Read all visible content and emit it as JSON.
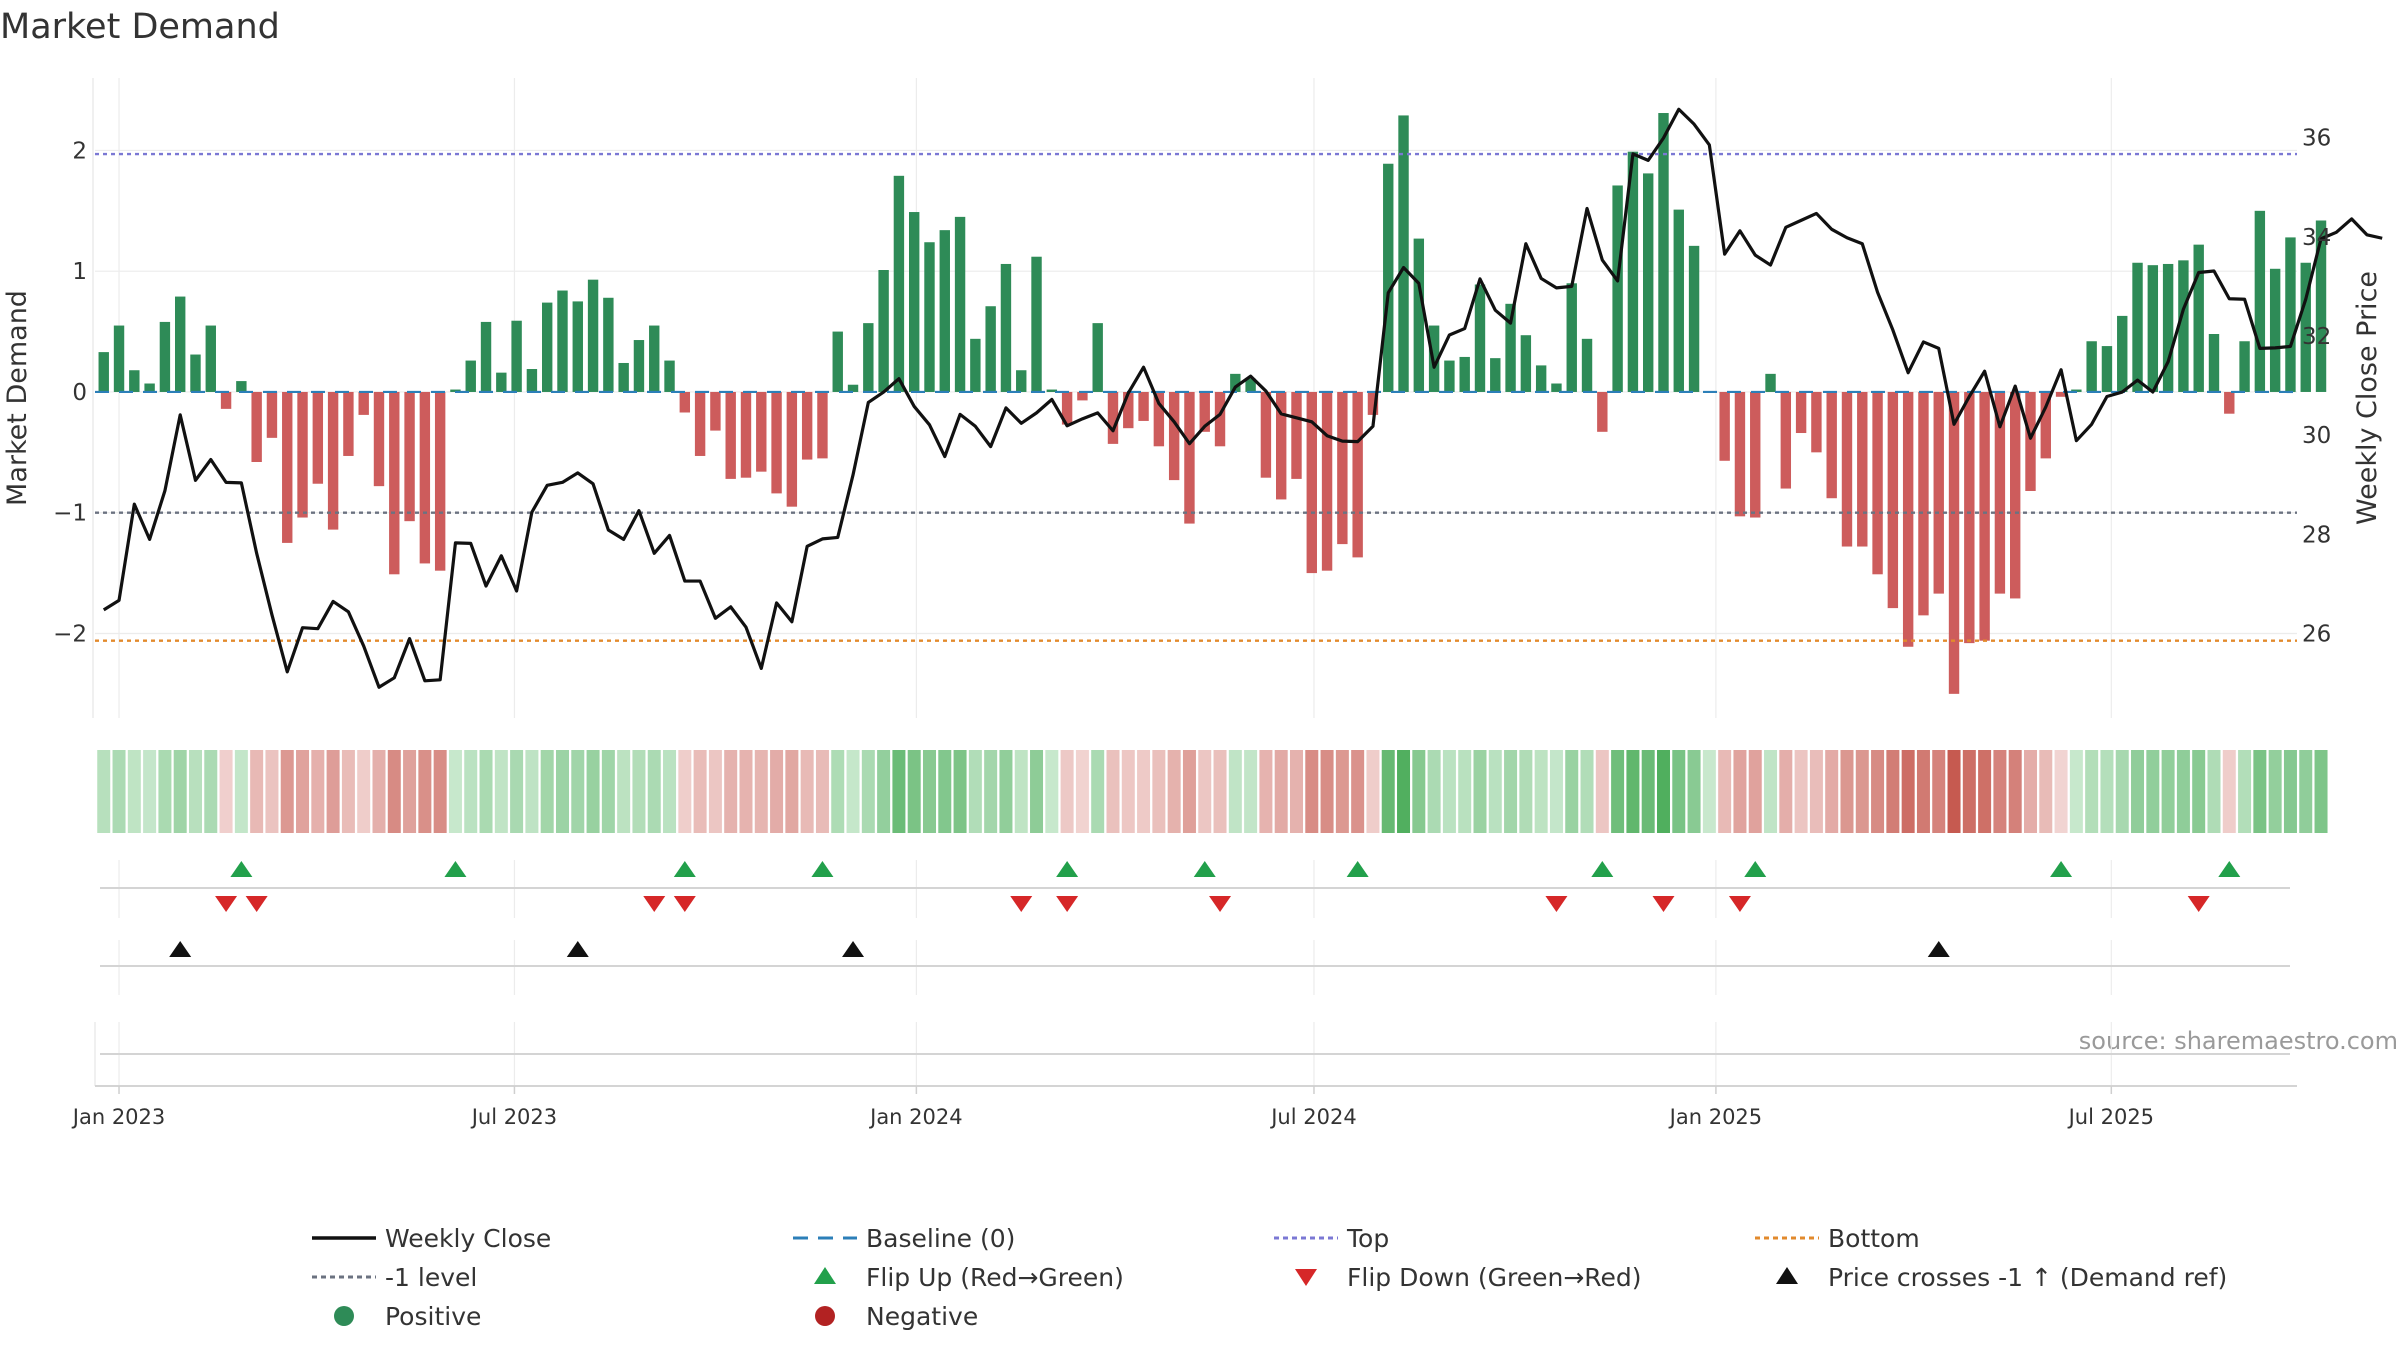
{
  "chart_data": {
    "type": "bar",
    "title": "Market Demand",
    "ylabel": "Market Demand",
    "y2label": "Weekly Close Price",
    "ylim": [
      -2.7,
      2.6
    ],
    "y2lim": [
      24.3,
      37.2
    ],
    "yticks": [
      -2,
      -1,
      0,
      1,
      2
    ],
    "ytick_labels": [
      "−2",
      "−1",
      "0",
      "1",
      "2"
    ],
    "y2ticks": [
      26,
      28,
      30,
      32,
      34,
      36
    ],
    "y2tick_labels": [
      "26",
      "28",
      "30",
      "32",
      "34",
      "36"
    ],
    "x_range": [
      "2022-12-21",
      "2025-09-24"
    ],
    "xticks": [
      {
        "date": "2023-01-01",
        "label": "Jan 2023"
      },
      {
        "date": "2023-07-01",
        "label": "Jul 2023"
      },
      {
        "date": "2024-01-01",
        "label": "Jan 2024"
      },
      {
        "date": "2024-07-01",
        "label": "Jul 2024"
      },
      {
        "date": "2025-01-01",
        "label": "Jan 2025"
      },
      {
        "date": "2025-07-01",
        "label": "Jul 2025"
      }
    ],
    "start_week": "2022-12-25",
    "week_days": 7,
    "demand": [
      0.33,
      0.55,
      0.18,
      0.07,
      0.58,
      0.79,
      0.31,
      0.55,
      -0.14,
      0.09,
      -0.58,
      -0.38,
      -1.25,
      -1.04,
      -0.76,
      -1.14,
      -0.53,
      -0.19,
      -0.78,
      -1.51,
      -1.07,
      -1.42,
      -1.48,
      0.02,
      0.26,
      0.58,
      0.16,
      0.59,
      0.19,
      0.74,
      0.84,
      0.75,
      0.93,
      0.78,
      0.24,
      0.43,
      0.55,
      0.26,
      -0.17,
      -0.53,
      -0.32,
      -0.72,
      -0.71,
      -0.66,
      -0.84,
      -0.95,
      -0.56,
      -0.55,
      0.5,
      0.06,
      0.57,
      1.01,
      1.79,
      1.49,
      1.24,
      1.34,
      1.45,
      0.44,
      0.71,
      1.06,
      0.18,
      1.12,
      0.02,
      -0.27,
      -0.07,
      0.57,
      -0.43,
      -0.3,
      -0.24,
      -0.45,
      -0.73,
      -1.09,
      -0.33,
      -0.45,
      0.15,
      0.11,
      -0.71,
      -0.89,
      -0.72,
      -1.5,
      -1.48,
      -1.26,
      -1.37,
      -0.19,
      1.89,
      2.29,
      1.27,
      0.55,
      0.26,
      0.29,
      0.89,
      0.28,
      0.73,
      0.47,
      0.22,
      0.07,
      0.9,
      0.44,
      -0.33,
      1.71,
      1.99,
      1.81,
      2.31,
      1.51,
      1.21,
      0.0,
      -0.57,
      -1.03,
      -1.04,
      0.15,
      -0.8,
      -0.34,
      -0.5,
      -0.88,
      -1.28,
      -1.28,
      -1.51,
      -1.79,
      -2.11,
      -1.85,
      -1.67,
      -2.5,
      -2.08,
      -2.06,
      -1.67,
      -1.71,
      -0.82,
      -0.55,
      -0.04,
      0.02,
      0.42,
      0.38,
      0.63,
      1.07,
      1.05,
      1.06,
      1.09,
      1.22,
      0.48,
      -0.18,
      0.42,
      1.5,
      1.02,
      1.28,
      1.07,
      1.42
    ],
    "close": [
      26.48,
      26.67,
      28.61,
      27.9,
      28.88,
      30.41,
      29.09,
      29.51,
      29.05,
      29.04,
      27.62,
      26.38,
      25.23,
      26.12,
      26.1,
      26.65,
      26.44,
      25.75,
      24.92,
      25.11,
      25.9,
      25.05,
      25.07,
      27.83,
      27.82,
      26.96,
      27.57,
      26.86,
      28.45,
      28.99,
      29.05,
      29.24,
      29.02,
      28.09,
      27.9,
      28.48,
      27.62,
      27.98,
      27.06,
      27.06,
      26.31,
      26.54,
      26.13,
      25.3,
      26.62,
      26.24,
      27.76,
      27.91,
      27.94,
      29.2,
      30.66,
      30.87,
      31.14,
      30.58,
      30.21,
      29.57,
      30.42,
      30.18,
      29.77,
      30.55,
      30.24,
      30.45,
      30.72,
      30.19,
      30.33,
      30.45,
      30.09,
      30.85,
      31.37,
      30.64,
      30.27,
      29.83,
      30.18,
      30.42,
      30.97,
      31.19,
      30.89,
      30.43,
      30.35,
      30.27,
      29.99,
      29.88,
      29.87,
      30.18,
      32.87,
      33.38,
      33.06,
      31.37,
      32.02,
      32.15,
      33.15,
      32.52,
      32.26,
      33.86,
      33.16,
      32.97,
      33.0,
      34.57,
      33.53,
      33.11,
      35.67,
      35.54,
      35.99,
      36.57,
      36.27,
      35.85,
      33.65,
      34.12,
      33.63,
      33.43,
      34.19,
      34.33,
      34.47,
      34.15,
      33.98,
      33.86,
      32.88,
      32.12,
      31.26,
      31.88,
      31.75,
      30.22,
      30.78,
      31.29,
      30.17,
      30.99,
      29.94,
      30.57,
      31.32,
      29.89,
      30.22,
      30.78,
      30.87,
      31.11,
      30.87,
      31.48,
      32.54,
      33.28,
      33.31,
      32.75,
      32.74,
      31.75,
      31.76,
      31.79,
      32.74,
      33.96,
      34.09,
      34.36,
      34.04,
      33.97
    ],
    "flip_up_weeks": [
      9,
      23,
      38,
      47,
      63,
      72,
      82,
      98,
      108,
      128,
      139
    ],
    "flip_down_weeks": [
      8,
      10,
      36,
      38,
      60,
      63,
      73,
      95,
      102,
      107,
      137
    ],
    "cross_weeks": [
      5,
      31,
      49,
      120
    ],
    "reference_lines": [
      {
        "name": "Top",
        "value": 1.97,
        "color": "#7b78d4"
      },
      {
        "name": "-1 level",
        "value": -1.0,
        "color": "#6b7280"
      },
      {
        "name": "Bottom",
        "value": -2.06,
        "color": "#e28a2c"
      },
      {
        "name": "Baseline (0)",
        "value": 0,
        "color": "#2c7fb8"
      }
    ],
    "colors": {
      "positive": "#2e8b57",
      "negative": "#cd5c5c",
      "close": "#111111",
      "flip_up": "#22a04b",
      "flip_down": "#d62728",
      "cross": "#111111"
    },
    "legend": [
      {
        "label": "Weekly Close",
        "symbol": "line-solid",
        "color": "#111111"
      },
      {
        "label": "Baseline (0)",
        "symbol": "line-dash",
        "color": "#2c7fb8"
      },
      {
        "label": "Top",
        "symbol": "line-dot",
        "color": "#7b78d4"
      },
      {
        "label": "Bottom",
        "symbol": "line-dot",
        "color": "#e28a2c"
      },
      {
        "label": "-1 level",
        "symbol": "line-dot",
        "color": "#6b7280"
      },
      {
        "label": "Flip Up (Red→Green)",
        "symbol": "triangle-up",
        "color": "#22a04b"
      },
      {
        "label": "Flip Down (Green→Red)",
        "symbol": "triangle-down",
        "color": "#d62728"
      },
      {
        "label": "Price crosses -1 ↑ (Demand ref)",
        "symbol": "triangle-up",
        "color": "#111111"
      },
      {
        "label": "Positive",
        "symbol": "dot",
        "color": "#2e8b57"
      },
      {
        "label": "Negative",
        "symbol": "dot",
        "color": "#b22222"
      }
    ],
    "annotation": "source: sharemaestro.com"
  }
}
